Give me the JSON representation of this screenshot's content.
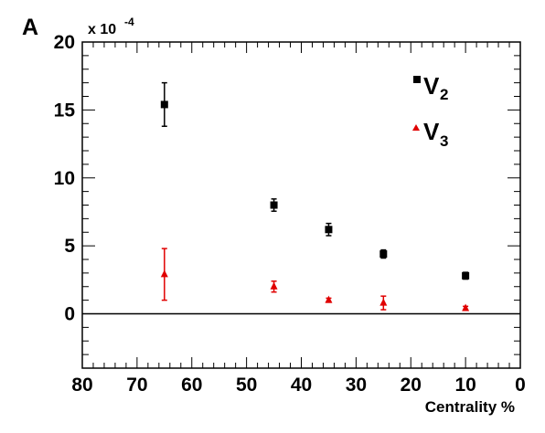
{
  "chart_data": {
    "type": "scatter",
    "panel_label": "A",
    "multiplier_label": "x 10",
    "multiplier_exponent": "-4",
    "xlabel": "Centrality %",
    "ylabel": "",
    "xlim": [
      80,
      0
    ],
    "ylim": [
      -4,
      20
    ],
    "x_reversed": true,
    "grid": false,
    "legend_position": "top-right",
    "zero_line": true,
    "x_ticks": [
      "80",
      "70",
      "60",
      "50",
      "40",
      "30",
      "20",
      "10",
      "0"
    ],
    "y_ticks": [
      "0",
      "5",
      "10",
      "15",
      "20"
    ],
    "series": [
      {
        "name": "v2",
        "legend_main": "V",
        "legend_sub": "2",
        "marker": "square",
        "color": "#000000",
        "x": [
          65,
          45,
          35,
          25,
          10
        ],
        "y": [
          15.4,
          8.0,
          6.2,
          4.4,
          2.8
        ],
        "err": [
          1.6,
          0.45,
          0.45,
          0.3,
          0.25
        ]
      },
      {
        "name": "v3",
        "legend_main": "V",
        "legend_sub": "3",
        "marker": "triangle",
        "color": "#e00000",
        "x": [
          65,
          45,
          35,
          25,
          10
        ],
        "y": [
          2.9,
          2.0,
          1.0,
          0.8,
          0.4
        ],
        "err": [
          1.9,
          0.4,
          0.15,
          0.5,
          0.15
        ]
      }
    ]
  }
}
